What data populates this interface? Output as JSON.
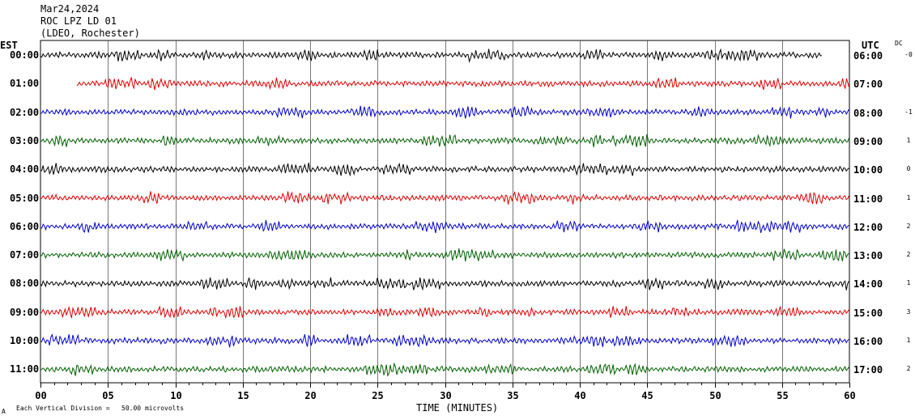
{
  "header": {
    "date": "Mar24,2024",
    "station": "ROC LPZ LD 01",
    "network": "(LDEO, Rochester)"
  },
  "labels": {
    "left_zone": "EST",
    "right_zone": "UTC",
    "dc": "DC",
    "footer_note": "Each Vertical Division =   50.00 microvolts",
    "footer_mark": "A"
  },
  "colors": {
    "black": "#000000",
    "red": "#e00000",
    "blue": "#0000cc",
    "green": "#006000",
    "grid": "#000000"
  },
  "chart_data": {
    "type": "line",
    "xlabel": "TIME (MINUTES)",
    "xlim": [
      0,
      60
    ],
    "x_ticks": [
      "00",
      "05",
      "10",
      "15",
      "20",
      "25",
      "30",
      "35",
      "40",
      "45",
      "50",
      "55",
      "60"
    ],
    "rows": [
      {
        "left": "00:00",
        "right": "06:00",
        "dc": "-0",
        "color": "black",
        "start": 0,
        "end": 58
      },
      {
        "left": "01:00",
        "right": "07:00",
        "dc": "",
        "color": "red",
        "start": 2.7,
        "end": 60
      },
      {
        "left": "02:00",
        "right": "08:00",
        "dc": "-1",
        "color": "blue",
        "start": 0,
        "end": 60
      },
      {
        "left": "03:00",
        "right": "09:00",
        "dc": "1",
        "color": "green",
        "start": 0,
        "end": 60
      },
      {
        "left": "04:00",
        "right": "10:00",
        "dc": "0",
        "color": "black",
        "start": 0,
        "end": 60
      },
      {
        "left": "05:00",
        "right": "11:00",
        "dc": "1",
        "color": "red",
        "start": 0,
        "end": 60
      },
      {
        "left": "06:00",
        "right": "12:00",
        "dc": "2",
        "color": "blue",
        "start": 0,
        "end": 60
      },
      {
        "left": "07:00",
        "right": "13:00",
        "dc": "2",
        "color": "green",
        "start": 0,
        "end": 60
      },
      {
        "left": "08:00",
        "right": "14:00",
        "dc": "1",
        "color": "black",
        "start": 0,
        "end": 60
      },
      {
        "left": "09:00",
        "right": "15:00",
        "dc": "3",
        "color": "red",
        "start": 0,
        "end": 60
      },
      {
        "left": "10:00",
        "right": "16:00",
        "dc": "1",
        "color": "blue",
        "start": 0,
        "end": 60
      },
      {
        "left": "11:00",
        "right": "17:00",
        "dc": "2",
        "color": "green",
        "start": 0,
        "end": 60
      }
    ]
  }
}
